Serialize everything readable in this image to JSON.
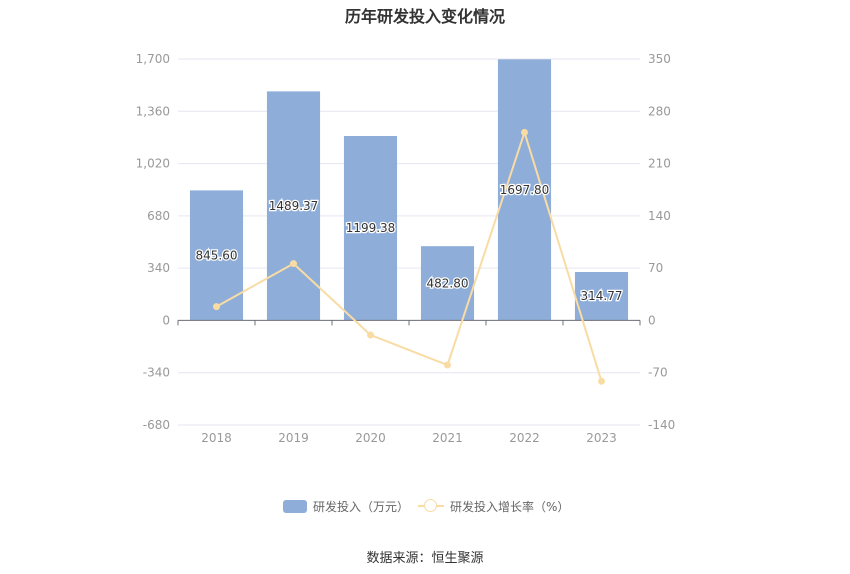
{
  "title": "历年研发投入变化情况",
  "source": "数据来源：恒生聚源",
  "colors": {
    "bar": "#8eadd9",
    "line": "#f8dca4",
    "axis_text": "#999999",
    "grid": "#e6e6f0"
  },
  "chart_data": {
    "type": "bar",
    "title": "历年研发投入变化情况",
    "categories": [
      "2018",
      "2019",
      "2020",
      "2021",
      "2022",
      "2023"
    ],
    "series": [
      {
        "name": "研发投入（万元）",
        "type": "bar",
        "axis": "left",
        "values": [
          845.6,
          1489.37,
          1199.38,
          482.8,
          1697.8,
          314.77
        ],
        "labels": [
          "845.60",
          "1489.37",
          "1199.38",
          "482.80",
          "1697.80",
          "314.77"
        ]
      },
      {
        "name": "研发投入增长率（%）",
        "type": "line",
        "axis": "right",
        "values": [
          18.5,
          76.1,
          -19.5,
          -59.7,
          251.7,
          -81.5
        ]
      }
    ],
    "y_left": {
      "min": -680,
      "max": 1700,
      "ticks": [
        1700,
        1360,
        1020,
        680,
        340,
        0,
        -340,
        -680
      ],
      "tick_labels": [
        "1,700",
        "1,360",
        "1,020",
        "680",
        "340",
        "0",
        "-340",
        "-680"
      ]
    },
    "y_right": {
      "min": -140,
      "max": 350,
      "ticks": [
        350,
        280,
        210,
        140,
        70,
        0,
        -70,
        -140
      ],
      "tick_labels": [
        "350",
        "280",
        "210",
        "140",
        "70",
        "0",
        "-70",
        "-140"
      ]
    },
    "grid": true,
    "legend_position": "bottom"
  }
}
